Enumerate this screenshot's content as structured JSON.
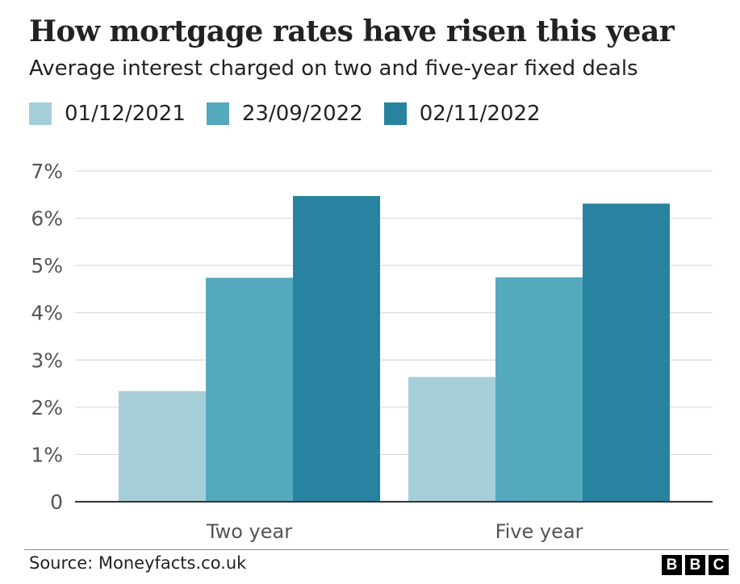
{
  "header": {
    "title": "How mortgage rates have risen this year",
    "subtitle": "Average interest charged on two and five-year fixed deals"
  },
  "legend": [
    {
      "label": "01/12/2021",
      "color": "#a6ced9"
    },
    {
      "label": "23/09/2022",
      "color": "#55a9bc"
    },
    {
      "label": "02/11/2022",
      "color": "#2883a0"
    }
  ],
  "chart_data": {
    "type": "bar",
    "categories": [
      "Two year",
      "Five year"
    ],
    "series": [
      {
        "name": "01/12/2021",
        "color": "#a6ced9",
        "values": [
          2.34,
          2.64
        ]
      },
      {
        "name": "23/09/2022",
        "color": "#55a9bc",
        "values": [
          4.74,
          4.75
        ]
      },
      {
        "name": "02/11/2022",
        "color": "#2883a0",
        "values": [
          6.47,
          6.31
        ]
      }
    ],
    "ylim": [
      0,
      7
    ],
    "y_ticks": [
      "0",
      "1%",
      "2%",
      "3%",
      "4%",
      "5%",
      "6%",
      "7%"
    ],
    "grid": true,
    "legend_position": "top-left"
  },
  "footer": {
    "source": "Source: Moneyfacts.co.uk",
    "logo_letters": [
      "B",
      "B",
      "C"
    ]
  }
}
